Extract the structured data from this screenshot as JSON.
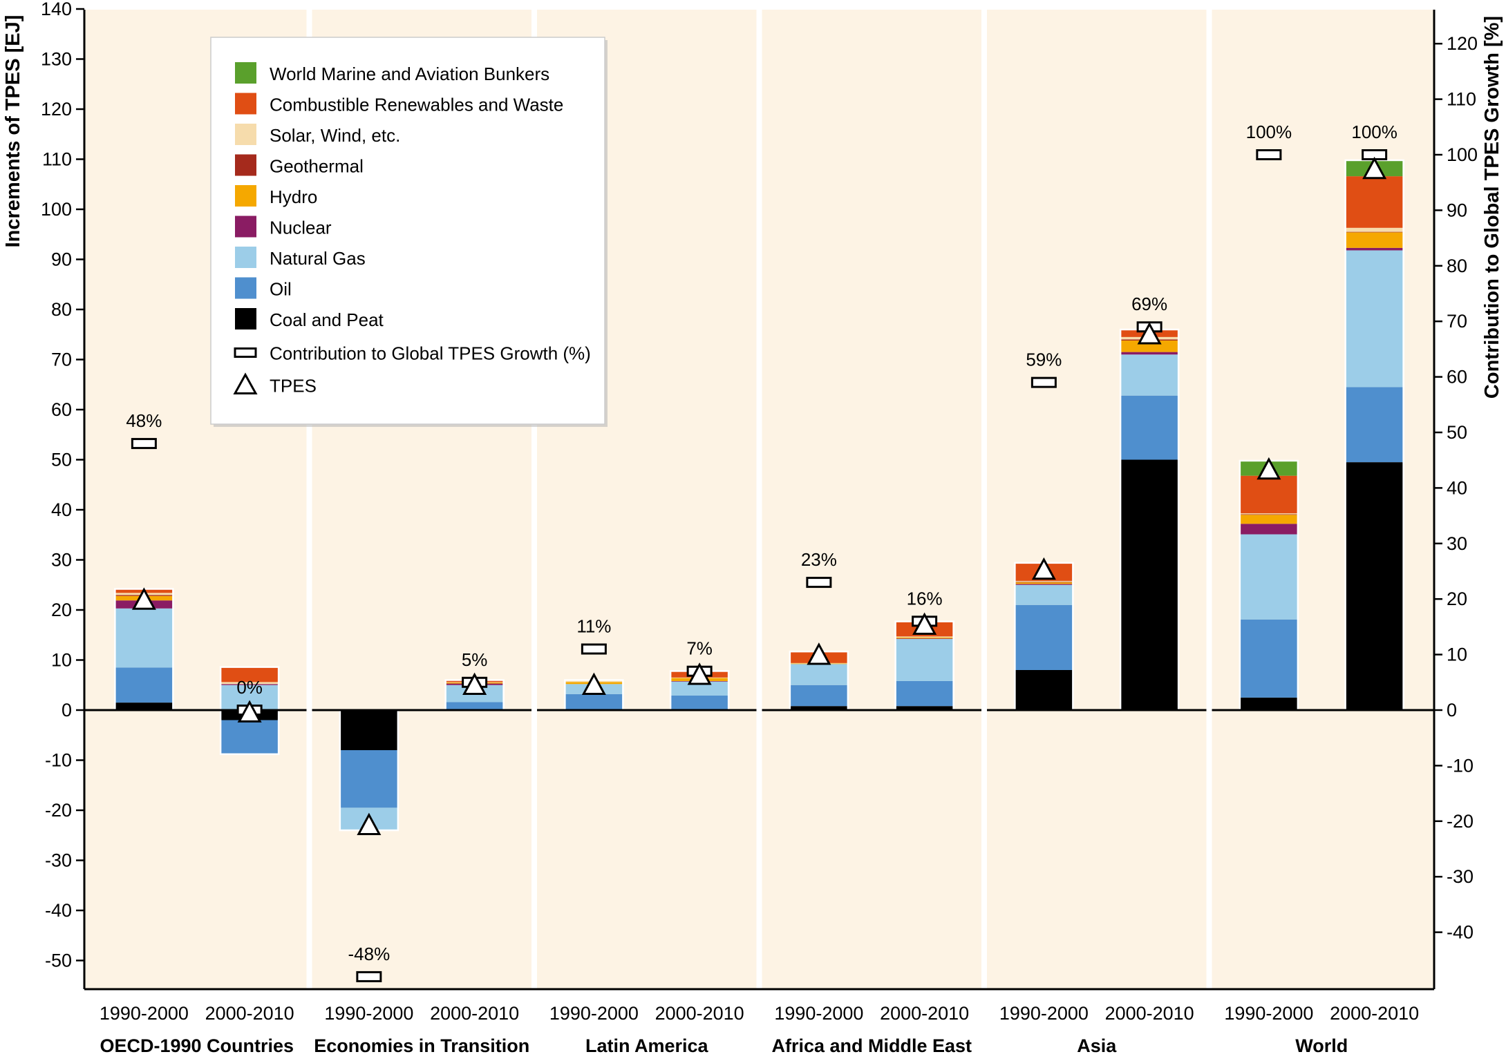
{
  "chart_data": {
    "type": "bar",
    "stacked": true,
    "y_left": {
      "label": "Increments of TPES [EJ]",
      "range": [
        -55,
        140
      ],
      "ticks": [
        -50,
        -40,
        -30,
        -20,
        -10,
        0,
        10,
        20,
        30,
        40,
        50,
        60,
        70,
        80,
        90,
        100,
        110,
        120,
        130,
        140
      ]
    },
    "y_right": {
      "label": "Contribution to Global TPES Growth [%]",
      "range": [
        -50,
        126
      ],
      "ticks": [
        -40,
        -30,
        -20,
        -10,
        0,
        10,
        20,
        30,
        40,
        50,
        60,
        70,
        80,
        90,
        100,
        110,
        120
      ]
    },
    "legend_title": "",
    "legend_placement": "top-left",
    "components": [
      {
        "key": "bunkers",
        "name": "World Marine and Aviation Bunkers",
        "color": "#5aa02c"
      },
      {
        "key": "combren",
        "name": "Combustible Renewables and Waste",
        "color": "#e04e14"
      },
      {
        "key": "solar",
        "name": "Solar, Wind, etc.",
        "color": "#f6dcac"
      },
      {
        "key": "geo",
        "name": "Geothermal",
        "color": "#a52a1c"
      },
      {
        "key": "hydro",
        "name": "Hydro",
        "color": "#f5a800"
      },
      {
        "key": "nuclear",
        "name": "Nuclear",
        "color": "#8a1c63"
      },
      {
        "key": "gas",
        "name": "Natural Gas",
        "color": "#9ccde8"
      },
      {
        "key": "oil",
        "name": "Oil",
        "color": "#4f8fce"
      },
      {
        "key": "coal",
        "name": "Coal and Peat",
        "color": "#000000"
      }
    ],
    "marker_legend": [
      {
        "key": "contribution",
        "name": "Contribution to Global TPES Growth (%)",
        "shape": "rectangle"
      },
      {
        "key": "tpes",
        "name": "TPES",
        "shape": "triangle"
      }
    ],
    "regions": [
      {
        "name": "OECD-1990 Countries",
        "periods": [
          {
            "period": "1990-2000",
            "pct_label": "48%",
            "pct": 48,
            "tpes": 22,
            "components": {
              "coal": 1.5,
              "oil": 7,
              "gas": 11.8,
              "nuclear": 1.6,
              "hydro": 0.9,
              "geo": 0.2,
              "solar": 0.4,
              "combren": 0.8,
              "bunkers": 0
            }
          },
          {
            "period": "2000-2010",
            "pct_label": "0%",
            "pct": 0,
            "tpes": -0.5,
            "components": {
              "coal": -2,
              "oil": -6.8,
              "gas": 5,
              "nuclear": 0.2,
              "hydro": 0,
              "geo": 0,
              "solar": 0.4,
              "combren": 3,
              "bunkers": 0
            }
          }
        ]
      },
      {
        "name": "Economies in Transition",
        "periods": [
          {
            "period": "1990-2000",
            "pct_label": "-48%",
            "pct": -48,
            "tpes": -23,
            "components": {
              "coal": -8,
              "oil": -11.5,
              "gas": -4.5,
              "nuclear": 0,
              "hydro": 0,
              "geo": 0,
              "solar": 0,
              "combren": 0,
              "bunkers": 0
            }
          },
          {
            "period": "2000-2010",
            "pct_label": "5%",
            "pct": 5,
            "tpes": 5,
            "components": {
              "coal": 0.2,
              "oil": 1.4,
              "gas": 3.4,
              "nuclear": 0.3,
              "hydro": 0.2,
              "geo": 0,
              "solar": 0.1,
              "combren": 0.4,
              "bunkers": 0
            }
          }
        ]
      },
      {
        "name": "Latin America",
        "periods": [
          {
            "period": "1990-2000",
            "pct_label": "11%",
            "pct": 11,
            "tpes": 5,
            "components": {
              "coal": 0.2,
              "oil": 3,
              "gas": 2,
              "nuclear": 0,
              "hydro": 0.4,
              "geo": 0,
              "solar": 0.4,
              "combren": 0,
              "bunkers": 0
            }
          },
          {
            "period": "2000-2010",
            "pct_label": "7%",
            "pct": 7,
            "tpes": 7,
            "components": {
              "coal": 0.2,
              "oil": 2.7,
              "gas": 2.8,
              "nuclear": 0.1,
              "hydro": 0.6,
              "geo": 0,
              "solar": 0.1,
              "combren": 1.3,
              "bunkers": 0
            }
          }
        ]
      },
      {
        "name": "Africa and Middle East",
        "periods": [
          {
            "period": "1990-2000",
            "pct_label": "23%",
            "pct": 23,
            "tpes": 11,
            "components": {
              "coal": 0.8,
              "oil": 4.2,
              "gas": 4.2,
              "nuclear": 0,
              "hydro": 0.1,
              "geo": 0,
              "solar": 0.1,
              "combren": 2.3,
              "bunkers": 0
            }
          },
          {
            "period": "2000-2010",
            "pct_label": "16%",
            "pct": 16,
            "tpes": 17,
            "components": {
              "coal": 0.8,
              "oil": 5,
              "gas": 8.4,
              "nuclear": 0.1,
              "hydro": 0.2,
              "geo": 0,
              "solar": 0.2,
              "combren": 3,
              "bunkers": 0
            }
          }
        ]
      },
      {
        "name": "Asia",
        "periods": [
          {
            "period": "1990-2000",
            "pct_label": "59%",
            "pct": 59,
            "tpes": 28,
            "components": {
              "coal": 8,
              "oil": 13,
              "gas": 4,
              "nuclear": 0.2,
              "hydro": 0.3,
              "geo": 0.1,
              "solar": 0.2,
              "combren": 3.6,
              "bunkers": 0
            }
          },
          {
            "period": "2000-2010",
            "pct_label": "69%",
            "pct": 69,
            "tpes": 75,
            "components": {
              "coal": 50,
              "oil": 12.8,
              "gas": 8.2,
              "nuclear": 0.5,
              "hydro": 2.3,
              "geo": 0.2,
              "solar": 0.5,
              "combren": 1.5,
              "bunkers": 0
            }
          }
        ]
      },
      {
        "name": "World",
        "periods": [
          {
            "period": "1990-2000",
            "pct_label": "100%",
            "pct": 100,
            "tpes": 48,
            "components": {
              "coal": 2.5,
              "oil": 15.6,
              "gas": 17,
              "nuclear": 2.1,
              "hydro": 1.8,
              "geo": 0.1,
              "solar": 0.2,
              "combren": 7.5,
              "bunkers": 3
            }
          },
          {
            "period": "2000-2010",
            "pct_label": "100%",
            "pct": 100,
            "tpes": 108,
            "components": {
              "coal": 49.5,
              "oil": 15,
              "gas": 27.3,
              "nuclear": 0.5,
              "hydro": 3.1,
              "geo": 0.1,
              "solar": 0.8,
              "combren": 10.3,
              "bunkers": 3.2
            }
          }
        ]
      }
    ]
  }
}
